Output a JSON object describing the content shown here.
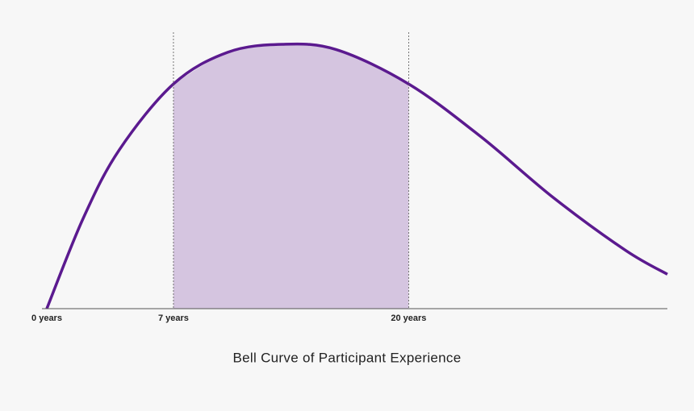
{
  "chart_data": {
    "type": "line",
    "title": "Bell Curve of Participant Experience",
    "x": [
      0,
      2,
      4,
      7,
      10,
      13,
      16,
      20,
      24,
      28,
      32,
      34.3
    ],
    "series": [
      {
        "color": "#5b1a8f",
        "values": [
          0,
          34,
          60,
          85,
          97,
          100,
          98,
          85,
          65,
          42,
          22,
          13
        ]
      }
    ],
    "shade_color": "#d5c5e0",
    "xlim": [
      0,
      34.3
    ],
    "ylim": [
      0,
      100
    ],
    "xticks": [
      {
        "value": 0,
        "label": "0 years"
      },
      {
        "value": 7,
        "label": "7 years"
      },
      {
        "value": 20,
        "label": "20 years"
      }
    ]
  }
}
